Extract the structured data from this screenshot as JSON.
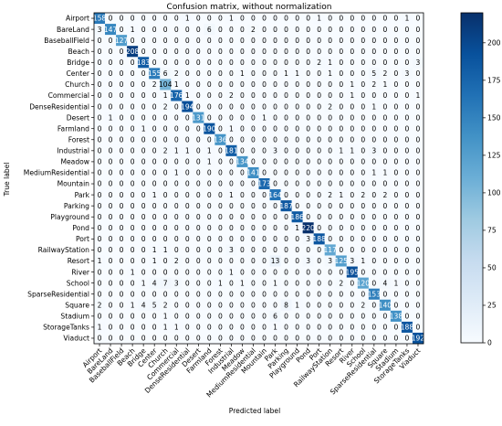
{
  "chart_data": {
    "type": "heatmap",
    "title": "Confusion matrix, without normalization",
    "xlabel": "Predicted label",
    "ylabel": "True label",
    "labels": [
      "Airport",
      "BareLand",
      "BaseballField",
      "Beach",
      "Bridge",
      "Center",
      "Church",
      "Commercial",
      "DenseResidential",
      "Desert",
      "Farmland",
      "Forest",
      "Industrial",
      "Meadow",
      "MediumResidential",
      "Mountain",
      "Park",
      "Parking",
      "Playground",
      "Pond",
      "Port",
      "RailwayStation",
      "Resort",
      "River",
      "School",
      "SparseResidential",
      "Square",
      "Stadium",
      "StorageTanks",
      "Viaduct"
    ],
    "matrix": [
      [
        158,
        0,
        0,
        0,
        0,
        0,
        0,
        0,
        1,
        0,
        0,
        0,
        1,
        0,
        0,
        0,
        0,
        0,
        0,
        0,
        1,
        0,
        0,
        0,
        0,
        0,
        0,
        0,
        1,
        0
      ],
      [
        3,
        147,
        0,
        1,
        0,
        0,
        0,
        0,
        0,
        0,
        6,
        0,
        0,
        0,
        2,
        0,
        0,
        0,
        0,
        0,
        0,
        0,
        0,
        0,
        0,
        0,
        0,
        0,
        0,
        0
      ],
      [
        0,
        0,
        127,
        0,
        0,
        0,
        0,
        0,
        0,
        0,
        0,
        0,
        0,
        0,
        0,
        0,
        0,
        0,
        0,
        0,
        0,
        0,
        0,
        0,
        0,
        0,
        0,
        0,
        0,
        0
      ],
      [
        0,
        0,
        0,
        208,
        0,
        0,
        0,
        0,
        0,
        0,
        0,
        0,
        0,
        0,
        0,
        0,
        0,
        0,
        0,
        0,
        0,
        0,
        0,
        0,
        0,
        0,
        0,
        0,
        0,
        0
      ],
      [
        0,
        0,
        0,
        0,
        183,
        0,
        0,
        0,
        0,
        0,
        0,
        0,
        0,
        0,
        0,
        0,
        0,
        0,
        0,
        0,
        2,
        1,
        0,
        0,
        0,
        0,
        0,
        0,
        0,
        3
      ],
      [
        0,
        0,
        0,
        0,
        0,
        155,
        6,
        2,
        0,
        0,
        0,
        0,
        0,
        1,
        0,
        0,
        0,
        1,
        1,
        0,
        0,
        1,
        0,
        0,
        0,
        5,
        2,
        0,
        3,
        0
      ],
      [
        0,
        0,
        0,
        0,
        0,
        2,
        104,
        1,
        0,
        0,
        0,
        0,
        0,
        0,
        0,
        0,
        0,
        0,
        0,
        0,
        0,
        0,
        0,
        1,
        0,
        2,
        1,
        0,
        0,
        0
      ],
      [
        0,
        0,
        0,
        0,
        0,
        0,
        1,
        176,
        1,
        0,
        0,
        0,
        2,
        0,
        0,
        0,
        0,
        0,
        0,
        0,
        0,
        0,
        0,
        1,
        0,
        0,
        0,
        0,
        0,
        1
      ],
      [
        0,
        0,
        0,
        0,
        0,
        0,
        2,
        0,
        194,
        0,
        0,
        0,
        0,
        0,
        0,
        0,
        0,
        0,
        0,
        0,
        0,
        2,
        0,
        0,
        0,
        1,
        0,
        0,
        0,
        0
      ],
      [
        0,
        1,
        0,
        0,
        0,
        0,
        0,
        0,
        0,
        131,
        0,
        0,
        0,
        0,
        0,
        1,
        0,
        0,
        0,
        0,
        0,
        0,
        0,
        0,
        0,
        0,
        0,
        0,
        0,
        0
      ],
      [
        0,
        0,
        0,
        0,
        1,
        0,
        0,
        0,
        0,
        0,
        190,
        0,
        1,
        0,
        0,
        0,
        0,
        0,
        0,
        0,
        0,
        0,
        0,
        0,
        0,
        0,
        0,
        0,
        0,
        0
      ],
      [
        0,
        0,
        0,
        0,
        0,
        0,
        0,
        0,
        0,
        0,
        0,
        136,
        0,
        0,
        0,
        0,
        0,
        0,
        0,
        0,
        0,
        0,
        0,
        0,
        0,
        0,
        0,
        0,
        0,
        0
      ],
      [
        0,
        0,
        0,
        0,
        0,
        0,
        2,
        1,
        1,
        0,
        1,
        0,
        181,
        0,
        0,
        0,
        3,
        0,
        0,
        0,
        0,
        0,
        1,
        1,
        0,
        3,
        0,
        0,
        0,
        0
      ],
      [
        0,
        0,
        0,
        0,
        0,
        0,
        0,
        0,
        0,
        0,
        1,
        0,
        0,
        134,
        0,
        0,
        0,
        0,
        0,
        0,
        0,
        0,
        0,
        0,
        0,
        0,
        0,
        0,
        0,
        0
      ],
      [
        0,
        0,
        0,
        0,
        0,
        0,
        0,
        1,
        0,
        0,
        0,
        0,
        0,
        0,
        141,
        0,
        0,
        0,
        0,
        0,
        0,
        0,
        0,
        0,
        0,
        1,
        1,
        0,
        0,
        0
      ],
      [
        0,
        0,
        0,
        0,
        0,
        0,
        0,
        0,
        0,
        0,
        0,
        0,
        0,
        0,
        0,
        173,
        0,
        0,
        0,
        0,
        0,
        0,
        0,
        0,
        0,
        0,
        0,
        0,
        0,
        0
      ],
      [
        0,
        0,
        0,
        0,
        0,
        1,
        0,
        0,
        0,
        0,
        0,
        0,
        1,
        0,
        0,
        0,
        164,
        0,
        0,
        0,
        0,
        2,
        1,
        0,
        2,
        0,
        2,
        0,
        0,
        0
      ],
      [
        0,
        0,
        0,
        0,
        0,
        0,
        0,
        0,
        0,
        0,
        0,
        0,
        0,
        0,
        0,
        0,
        0,
        187,
        0,
        0,
        0,
        0,
        0,
        0,
        0,
        0,
        0,
        0,
        0,
        0
      ],
      [
        0,
        0,
        0,
        0,
        0,
        0,
        0,
        0,
        0,
        0,
        0,
        0,
        0,
        0,
        0,
        0,
        0,
        0,
        186,
        0,
        0,
        0,
        0,
        0,
        0,
        0,
        0,
        0,
        0,
        0
      ],
      [
        0,
        0,
        0,
        0,
        0,
        0,
        0,
        0,
        0,
        0,
        0,
        0,
        0,
        0,
        0,
        0,
        0,
        0,
        1,
        220,
        0,
        0,
        0,
        0,
        0,
        0,
        0,
        0,
        0,
        0
      ],
      [
        0,
        0,
        0,
        0,
        0,
        0,
        0,
        0,
        0,
        0,
        0,
        0,
        0,
        0,
        0,
        0,
        0,
        0,
        0,
        3,
        188,
        0,
        0,
        0,
        0,
        0,
        0,
        0,
        0,
        0
      ],
      [
        0,
        0,
        0,
        0,
        0,
        1,
        1,
        0,
        0,
        0,
        0,
        0,
        3,
        0,
        0,
        0,
        0,
        0,
        0,
        0,
        0,
        117,
        0,
        0,
        0,
        0,
        0,
        0,
        0,
        0
      ],
      [
        1,
        0,
        0,
        0,
        0,
        1,
        0,
        2,
        0,
        0,
        0,
        0,
        0,
        0,
        0,
        0,
        13,
        0,
        0,
        3,
        0,
        3,
        125,
        3,
        1,
        0,
        0,
        0,
        0,
        0
      ],
      [
        0,
        0,
        0,
        1,
        0,
        0,
        0,
        0,
        0,
        0,
        0,
        0,
        1,
        0,
        0,
        0,
        0,
        0,
        0,
        0,
        0,
        0,
        0,
        195,
        0,
        0,
        0,
        0,
        0,
        0
      ],
      [
        0,
        0,
        0,
        0,
        1,
        4,
        7,
        3,
        0,
        0,
        0,
        1,
        0,
        1,
        0,
        0,
        1,
        0,
        0,
        0,
        0,
        0,
        2,
        0,
        120,
        0,
        4,
        1,
        0,
        0
      ],
      [
        0,
        0,
        0,
        0,
        0,
        0,
        0,
        0,
        0,
        0,
        0,
        0,
        0,
        0,
        0,
        0,
        0,
        0,
        0,
        0,
        0,
        0,
        0,
        0,
        0,
        153,
        0,
        0,
        0,
        0
      ],
      [
        2,
        0,
        0,
        1,
        4,
        5,
        2,
        0,
        0,
        0,
        0,
        0,
        0,
        0,
        0,
        0,
        0,
        8,
        1,
        0,
        0,
        0,
        0,
        0,
        2,
        0,
        140,
        0,
        0,
        0
      ],
      [
        0,
        0,
        0,
        0,
        0,
        0,
        1,
        0,
        0,
        0,
        0,
        0,
        0,
        0,
        0,
        0,
        6,
        0,
        0,
        0,
        0,
        0,
        0,
        0,
        0,
        0,
        0,
        138,
        0,
        0
      ],
      [
        1,
        0,
        0,
        0,
        0,
        0,
        1,
        1,
        0,
        0,
        0,
        0,
        0,
        0,
        0,
        0,
        1,
        0,
        0,
        0,
        0,
        0,
        0,
        0,
        0,
        0,
        0,
        0,
        188,
        0
      ],
      [
        0,
        0,
        0,
        0,
        0,
        0,
        0,
        0,
        0,
        0,
        0,
        0,
        0,
        0,
        0,
        0,
        0,
        0,
        0,
        0,
        0,
        0,
        0,
        0,
        0,
        0,
        0,
        0,
        0,
        192
      ]
    ],
    "colorbar": {
      "min": 0,
      "max": 220,
      "ticks": [
        0,
        25,
        50,
        75,
        100,
        125,
        150,
        175,
        200
      ],
      "colormap": "Blues"
    },
    "grid": false
  }
}
